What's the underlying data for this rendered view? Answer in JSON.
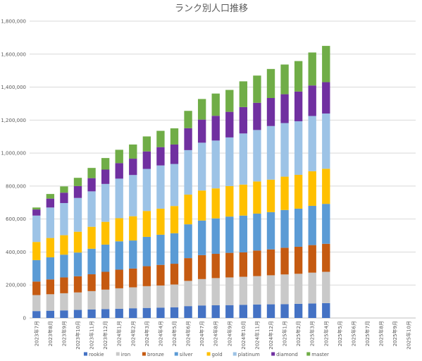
{
  "chart_data": {
    "type": "bar",
    "stacked": true,
    "title": "ランク別人口推移",
    "xlabel": "",
    "ylabel": "",
    "ylim": [
      0,
      1800000
    ],
    "yticks": [
      0,
      200000,
      400000,
      600000,
      800000,
      1000000,
      1200000,
      1400000,
      1600000,
      1800000
    ],
    "ytick_labels": [
      "0",
      "200,000",
      "400,000",
      "600,000",
      "800,000",
      "1,000,000",
      "1,200,000",
      "1,400,000",
      "1,600,000",
      "1,800,000"
    ],
    "grid": true,
    "legend_position": "bottom",
    "categories": [
      "2023年7月",
      "2023年8月",
      "2023年9月",
      "2023年10月",
      "2023年11月",
      "2023年12月",
      "2024年1月",
      "2024年2月",
      "2024年3月",
      "2024年4月",
      "2024年5月",
      "2024年6月",
      "2024年7月",
      "2024年8月",
      "2024年9月",
      "2024年10月",
      "2024年11月",
      "2024年12月",
      "2025年1月",
      "2025年2月",
      "2025年3月",
      "2025年4月",
      "2025年5月",
      "2025年6月",
      "2025年7月",
      "2025年8月",
      "2025年9月",
      "2025年10月"
    ],
    "series": [
      {
        "name": "rookie",
        "color": "#4472C4",
        "values": [
          42000,
          44000,
          46000,
          49000,
          52000,
          54000,
          56000,
          59000,
          61000,
          63000,
          65000,
          72000,
          76000,
          77000,
          78000,
          80000,
          82000,
          83000,
          84000,
          86000,
          88000,
          90000,
          null,
          null,
          null,
          null,
          null,
          null
        ]
      },
      {
        "name": "iron",
        "color": "#C9C9C9",
        "values": [
          97000,
          100000,
          104000,
          106000,
          111000,
          118000,
          124000,
          127000,
          132000,
          134000,
          138000,
          153000,
          160000,
          165000,
          168000,
          170000,
          172000,
          176000,
          180000,
          182000,
          187000,
          190000,
          null,
          null,
          null,
          null,
          null,
          null
        ]
      },
      {
        "name": "bronze",
        "color": "#C55A11",
        "values": [
          82000,
          90000,
          96000,
          98000,
          102000,
          108000,
          113000,
          114000,
          121000,
          125000,
          126000,
          138000,
          145000,
          147000,
          149000,
          148000,
          155000,
          157000,
          162000,
          164000,
          167000,
          170000,
          null,
          null,
          null,
          null,
          null,
          null
        ]
      },
      {
        "name": "silver",
        "color": "#5B9BD5",
        "values": [
          130000,
          134000,
          138000,
          144000,
          155000,
          165000,
          172000,
          170000,
          178000,
          183000,
          185000,
          205000,
          210000,
          215000,
          220000,
          223000,
          224000,
          226000,
          229000,
          231000,
          238000,
          242000,
          null,
          null,
          null,
          null,
          null,
          null
        ]
      },
      {
        "name": "gold",
        "color": "#FFC000",
        "values": [
          110000,
          117000,
          118000,
          126000,
          133000,
          138000,
          140000,
          147000,
          157000,
          158000,
          165000,
          180000,
          182000,
          182000,
          185000,
          188000,
          195000,
          197000,
          202000,
          205000,
          210000,
          213000,
          null,
          null,
          null,
          null,
          null,
          null
        ]
      },
      {
        "name": "platinum",
        "color": "#9DC3E6",
        "values": [
          160000,
          185000,
          195000,
          205000,
          215000,
          230000,
          240000,
          250000,
          255000,
          262000,
          255000,
          270000,
          290000,
          290000,
          295000,
          310000,
          312000,
          325000,
          325000,
          325000,
          335000,
          335000,
          null,
          null,
          null,
          null,
          null,
          null
        ]
      },
      {
        "name": "diamond",
        "color": "#7030A0",
        "values": [
          37000,
          54000,
          63000,
          72000,
          80000,
          87000,
          94000,
          99000,
          106000,
          111000,
          118000,
          133000,
          140000,
          150000,
          155000,
          160000,
          165000,
          170000,
          175000,
          180000,
          185000,
          190000,
          null,
          null,
          null,
          null,
          null,
          null
        ]
      },
      {
        "name": "master",
        "color": "#70AD47",
        "values": [
          12000,
          28000,
          38000,
          50000,
          62000,
          70000,
          81000,
          86000,
          91000,
          99000,
          98000,
          105000,
          125000,
          135000,
          133000,
          156000,
          165000,
          176000,
          180000,
          185000,
          200000,
          220000,
          null,
          null,
          null,
          null,
          null,
          null
        ]
      }
    ]
  }
}
